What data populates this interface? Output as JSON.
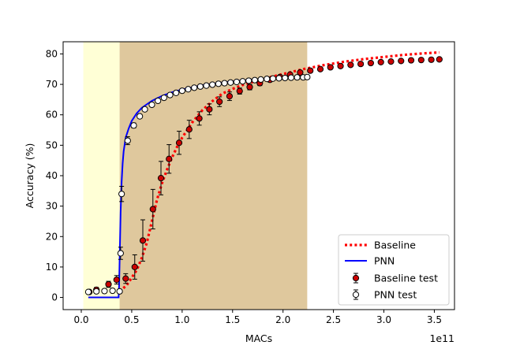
{
  "chart_data": {
    "type": "line",
    "xlabel": "MACs",
    "ylabel": "Accuracy (%)",
    "x_offset_label": "1e11",
    "xlim": [
      -0.18,
      3.7
    ],
    "ylim": [
      -4,
      84
    ],
    "xticks": [
      0.0,
      0.5,
      1.0,
      1.5,
      2.0,
      2.5,
      3.0,
      3.5
    ],
    "xtick_labels": [
      "0.0",
      "0.5",
      "1.0",
      "1.5",
      "2.0",
      "2.5",
      "3.0",
      "3.5"
    ],
    "yticks": [
      0,
      10,
      20,
      30,
      40,
      50,
      60,
      70,
      80
    ],
    "ytick_labels": [
      "0",
      "10",
      "20",
      "30",
      "40",
      "50",
      "60",
      "70",
      "80"
    ],
    "regions": [
      {
        "name": "light-region",
        "x0": 0.02,
        "x1": 0.38,
        "color": "#ffffd6"
      },
      {
        "name": "tan-region",
        "x0": 0.38,
        "x1": 2.24,
        "color": "#dfc89d"
      }
    ],
    "legend_position": "lower-right",
    "legend": [
      "Baseline",
      "PNN",
      "Baseline test",
      "PNN test"
    ],
    "colors": {
      "baseline": "#ff0000",
      "pnn": "#0000ff",
      "baseline_marker": "#cc0000"
    },
    "series": [
      {
        "name": "Baseline",
        "style": "dotted",
        "x": [
          0.38,
          0.45,
          0.5,
          0.55,
          0.6,
          0.65,
          0.7,
          0.75,
          0.8,
          0.85,
          0.9,
          0.95,
          1.0,
          1.05,
          1.1,
          1.15,
          1.2,
          1.3,
          1.4,
          1.5,
          1.6,
          1.7,
          1.8,
          1.9,
          2.0,
          2.1,
          2.2,
          2.4,
          2.6,
          2.8,
          3.0,
          3.2,
          3.4,
          3.55
        ],
        "y": [
          2.0,
          4.0,
          6.5,
          9.0,
          13.0,
          18.0,
          25.0,
          32.0,
          37.5,
          42.0,
          46.0,
          49.5,
          52.5,
          55.0,
          57.5,
          59.5,
          61.5,
          64.5,
          67.0,
          68.5,
          69.8,
          70.8,
          71.8,
          72.6,
          73.4,
          74.2,
          75.0,
          76.3,
          77.4,
          78.3,
          79.0,
          79.7,
          80.2,
          80.5
        ]
      },
      {
        "name": "PNN",
        "style": "solid",
        "x": [
          0.07,
          0.37,
          0.375,
          0.38,
          0.385,
          0.39,
          0.4,
          0.41,
          0.42,
          0.44,
          0.47,
          0.5,
          0.55,
          0.6,
          0.7,
          0.8,
          0.9,
          1.0,
          1.2,
          1.4,
          1.6,
          1.8,
          2.0,
          2.2,
          2.24
        ],
        "y": [
          0.0,
          0.0,
          4.0,
          12.0,
          20.0,
          28.0,
          38.0,
          44.0,
          48.0,
          52.5,
          55.5,
          58.0,
          60.5,
          62.3,
          64.6,
          66.2,
          67.4,
          68.3,
          69.7,
          70.6,
          71.3,
          71.8,
          72.1,
          72.3,
          72.3
        ]
      },
      {
        "name": "Baseline test",
        "marker": "filled-circle",
        "x": [
          0.08,
          0.15,
          0.27,
          0.35,
          0.44,
          0.53,
          0.61,
          0.71,
          0.79,
          0.87,
          0.97,
          1.07,
          1.17,
          1.27,
          1.37,
          1.47,
          1.57,
          1.67,
          1.77,
          1.87,
          1.97,
          2.07,
          2.17,
          2.27,
          2.37,
          2.47,
          2.57,
          2.67,
          2.77,
          2.87,
          2.97,
          3.07,
          3.17,
          3.27,
          3.37,
          3.47,
          3.55
        ],
        "y": [
          1.8,
          2.5,
          4.3,
          5.8,
          6.2,
          10.0,
          18.7,
          29.0,
          39.2,
          45.5,
          50.8,
          55.2,
          58.8,
          61.8,
          64.3,
          66.1,
          67.8,
          69.1,
          70.4,
          71.5,
          72.4,
          73.2,
          73.9,
          74.5,
          75.0,
          75.6,
          76.0,
          76.4,
          76.7,
          77.0,
          77.3,
          77.5,
          77.7,
          77.9,
          78.0,
          78.1,
          78.2
        ],
        "error": [
          0.6,
          0.8,
          1.0,
          1.4,
          1.6,
          4.0,
          6.8,
          6.5,
          5.5,
          4.7,
          3.8,
          3.0,
          2.2,
          1.8,
          1.6,
          1.4,
          1.0,
          0.9,
          0.8,
          0.7,
          0.6,
          0.5,
          0.5,
          0.5,
          0.4,
          0.4,
          0.4,
          0.4,
          0.3,
          0.3,
          0.3,
          0.3,
          0.3,
          0.3,
          0.3,
          0.3,
          0.3
        ]
      },
      {
        "name": "PNN test",
        "marker": "open-circle",
        "x": [
          0.07,
          0.15,
          0.23,
          0.31,
          0.38,
          0.39,
          0.4,
          0.46,
          0.52,
          0.58,
          0.63,
          0.7,
          0.76,
          0.82,
          0.88,
          0.94,
          1.0,
          1.06,
          1.12,
          1.18,
          1.24,
          1.3,
          1.36,
          1.42,
          1.48,
          1.54,
          1.6,
          1.66,
          1.72,
          1.78,
          1.84,
          1.9,
          1.96,
          2.02,
          2.08,
          2.14,
          2.2,
          2.24
        ],
        "y": [
          1.8,
          2.0,
          2.1,
          2.2,
          2.0,
          14.5,
          34.0,
          51.5,
          56.5,
          59.5,
          61.8,
          63.3,
          64.6,
          65.6,
          66.5,
          67.2,
          67.9,
          68.4,
          68.9,
          69.3,
          69.6,
          69.9,
          70.2,
          70.4,
          70.6,
          70.8,
          71.0,
          71.2,
          71.4,
          71.6,
          71.8,
          71.9,
          72.0,
          72.1,
          72.2,
          72.3,
          72.3,
          72.4
        ],
        "error": [
          0.4,
          0.4,
          0.4,
          0.4,
          0.5,
          2.0,
          2.5,
          1.3,
          0.8,
          0.6,
          0.5,
          0.4,
          0.4,
          0.4,
          0.3,
          0.3,
          0.3,
          0.3,
          0.3,
          0.3,
          0.3,
          0.3,
          0.3,
          0.3,
          0.3,
          0.3,
          0.3,
          0.3,
          0.3,
          0.3,
          0.3,
          0.3,
          0.3,
          0.3,
          0.3,
          0.3,
          0.3,
          0.3
        ]
      }
    ]
  }
}
